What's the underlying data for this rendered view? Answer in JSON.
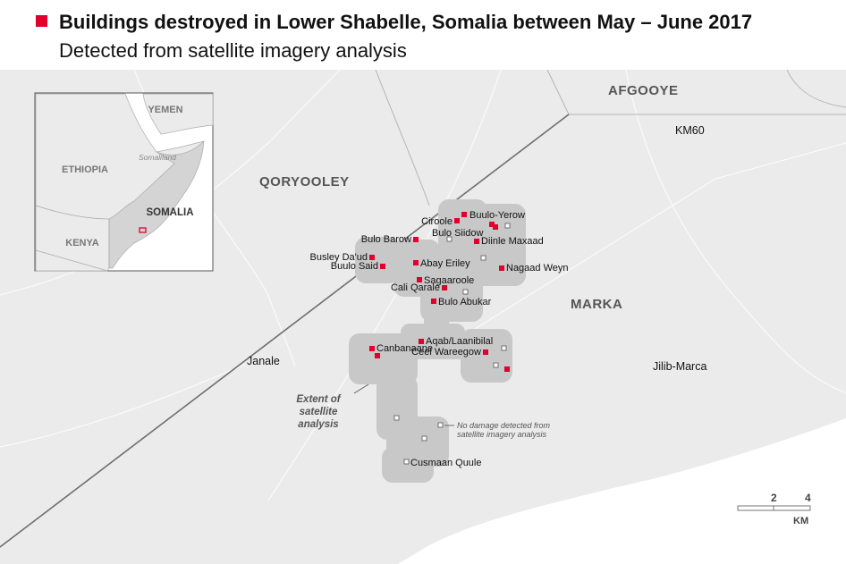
{
  "header": {
    "title": "Buildings destroyed in Lower Shabelle, Somalia between May – June 2017",
    "subtitle": "Detected from satellite imagery analysis",
    "accent_color": "#e0002b"
  },
  "regions": {
    "afgooye": "AFGOOYE",
    "qoryooley": "QORYOOLEY",
    "marka": "MARKA"
  },
  "towns": {
    "km60": "KM60",
    "janale": "Janale",
    "jilib_marca": "Jilib-Marca",
    "marka_town": "Marka"
  },
  "villages": {
    "buulo_yerow": "Buulo-Yerow",
    "ciroole": "Ciroole",
    "bulo_barow": "Bulo Barow",
    "bulo_siidow": "Bulo Siidow",
    "diinle_maxaad": "Diinle Maxaad",
    "busley_daud": "Busley Da'ud",
    "buulo_said": "Buulo Said",
    "abay_eriley": "Abay Eriley",
    "nagaad_weyn": "Nagaad Weyn",
    "sagaaroole": "Sagaaroole",
    "cali_qarale": "Cali Qarale",
    "bulo_abukar": "Bulo Abukar",
    "aqab": "Aqab/Laanibilal",
    "canbanaane": "Canbanaane",
    "ceel_wareegow": "Ceel Wareegow",
    "cusmaan_quule": "Cusmaan Quule"
  },
  "annotations": {
    "extent_1": "Extent of",
    "extent_2": "satellite",
    "extent_3": "analysis",
    "no_damage_1": "No damage detected from",
    "no_damage_2": "satellite imagery analysis"
  },
  "inset": {
    "yemen": "YEMEN",
    "ethiopia": "ETHIOPIA",
    "somaliland": "Somaliland",
    "somalia": "SOMALIA",
    "kenya": "KENYA"
  },
  "scale": {
    "tick_2": "2",
    "tick_4": "4",
    "unit": "KM"
  },
  "legend": {
    "destroyed_marker": "red-square",
    "no_damage_marker": "white-square"
  }
}
